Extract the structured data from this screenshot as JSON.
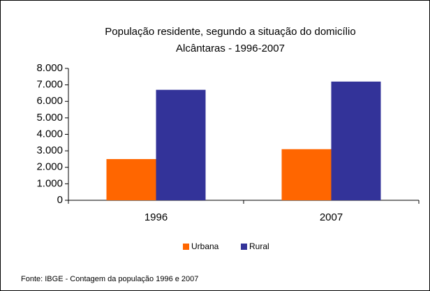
{
  "chart_data": {
    "type": "bar",
    "title": "População residente, segundo a situação do domicílio",
    "subtitle": "Alcântaras - 1996-2007",
    "categories": [
      "1996",
      "2007"
    ],
    "series": [
      {
        "name": "Urbana",
        "color": "#ff6600",
        "values": [
          2500,
          3100
        ]
      },
      {
        "name": "Rural",
        "color": "#333399",
        "values": [
          6700,
          7200
        ]
      }
    ],
    "ylim": [
      0,
      8000
    ],
    "yticks": [
      0,
      {
        "value": 1000,
        "label": "1.000"
      },
      {
        "value": 2000,
        "label": "2.000"
      },
      {
        "value": 3000,
        "label": "3.000"
      },
      {
        "value": 4000,
        "label": "4.000"
      },
      {
        "value": 5000,
        "label": "5.000"
      },
      {
        "value": 6000,
        "label": "6.000"
      },
      {
        "value": 7000,
        "label": "7.000"
      },
      {
        "value": 8000,
        "label": "8.000"
      }
    ],
    "legend": "bottom",
    "source": "Fonte: IBGE - Contagem da população 1996 e 2007"
  }
}
